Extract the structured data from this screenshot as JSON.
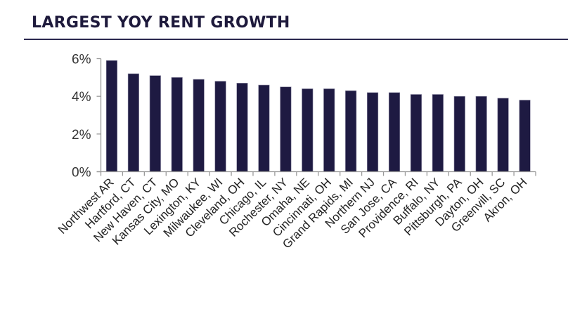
{
  "header": {
    "title": "LARGEST YOY RENT GROWTH"
  },
  "colors": {
    "bar": "#1e1a42",
    "title": "#1e1a3c",
    "axis": "#999999"
  },
  "chart_data": {
    "type": "bar",
    "title": "LARGEST YOY RENT GROWTH",
    "xlabel": "",
    "ylabel": "",
    "ylim": [
      0,
      6
    ],
    "yticks": [
      "0%",
      "2%",
      "4%",
      "6%"
    ],
    "grid": false,
    "legend": null,
    "categories": [
      "Northwest AR",
      "Hartford, CT",
      "New Haven, CT",
      "Kansas City, MO",
      "Lexington, KY",
      "Milwaukee, WI",
      "Cleveland, OH",
      "Chicago, IL",
      "Rochester, NY",
      "Omaha, NE",
      "Cincinnati, OH",
      "Grand Rapids, MI",
      "Northern NJ",
      "San Jose, CA",
      "Providence, RI",
      "Buffalo, NY",
      "Pittsburgh, PA",
      "Dayton, OH",
      "Greenvill, SC",
      "Akron, OH"
    ],
    "values": [
      5.9,
      5.2,
      5.1,
      5.0,
      4.9,
      4.8,
      4.7,
      4.6,
      4.5,
      4.4,
      4.4,
      4.3,
      4.2,
      4.2,
      4.1,
      4.1,
      4.0,
      4.0,
      3.9,
      3.8
    ],
    "unit": "%"
  }
}
